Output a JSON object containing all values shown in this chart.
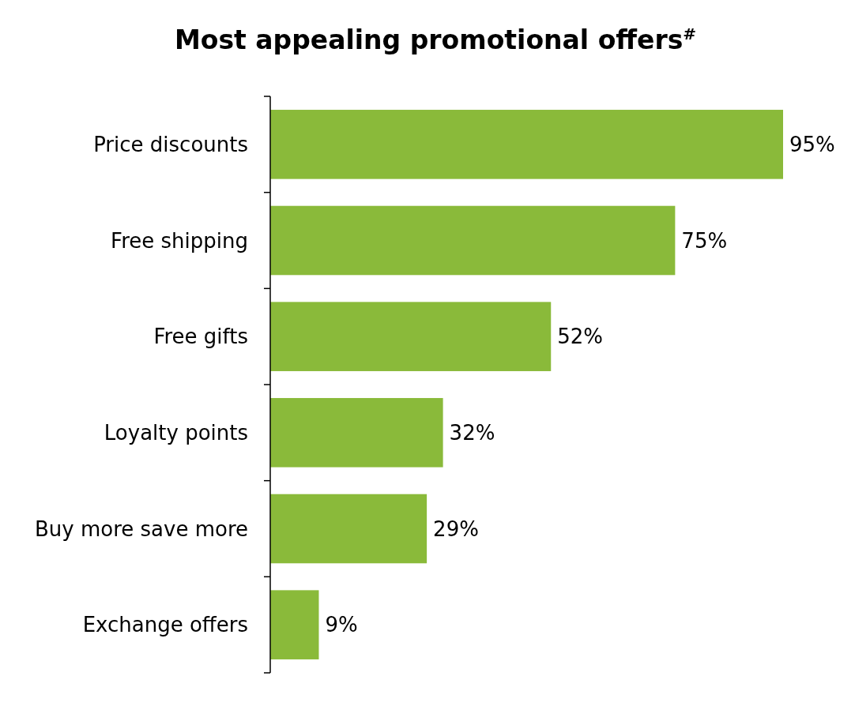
{
  "chart_data": {
    "type": "bar",
    "orientation": "horizontal",
    "title": "Most appealing promotional offers$^{#}$",
    "categories": [
      "Price discounts",
      "Free shipping",
      "Free gifts",
      "Loyalty points",
      "Buy more save more",
      "Exchange offers"
    ],
    "values": [
      95,
      75,
      52,
      32,
      29,
      9
    ],
    "value_labels": [
      "95%",
      "75%",
      "52%",
      "32%",
      "29%",
      "9%"
    ],
    "color": "#8aba3a",
    "tick_labels": "y"
  }
}
